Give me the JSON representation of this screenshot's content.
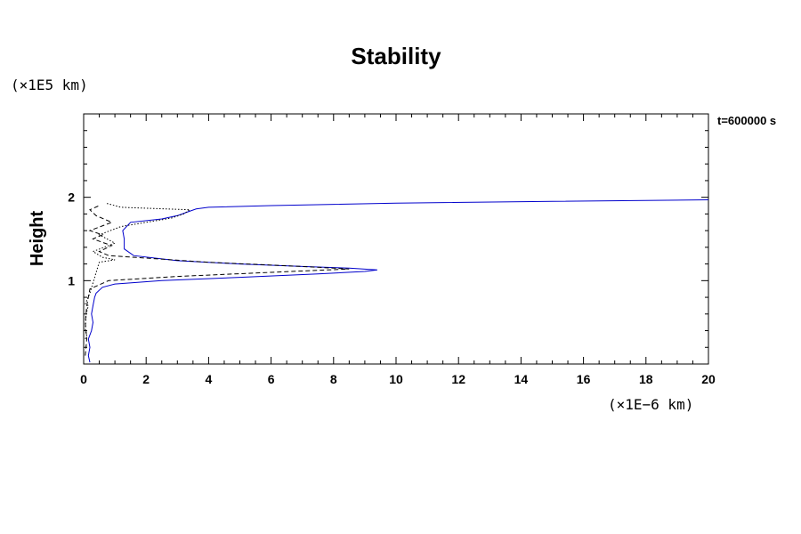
{
  "chart_data": {
    "type": "line",
    "title": "Stability",
    "ylabel": "Height",
    "xlabel": "",
    "y_unit": "(×1E5 km)",
    "x_unit": "(×1E−6 km)",
    "time_label": "t=600000 s",
    "xlim": [
      0,
      20
    ],
    "ylim": [
      0,
      3
    ],
    "x_ticks": [
      "0",
      "2",
      "4",
      "6",
      "8",
      "10",
      "12",
      "14",
      "16",
      "18",
      "20"
    ],
    "y_ticks": [
      "1",
      "2"
    ],
    "series": [
      {
        "color": "#0000cc",
        "dash": "solid",
        "points": [
          [
            0.2,
            0.02
          ],
          [
            0.15,
            0.1
          ],
          [
            0.2,
            0.2
          ],
          [
            0.15,
            0.3
          ],
          [
            0.25,
            0.4
          ],
          [
            0.3,
            0.5
          ],
          [
            0.25,
            0.6
          ],
          [
            0.3,
            0.7
          ],
          [
            0.35,
            0.8
          ],
          [
            0.4,
            0.85
          ],
          [
            0.6,
            0.92
          ],
          [
            1.0,
            0.96
          ],
          [
            2.5,
            1.0
          ],
          [
            5.0,
            1.04
          ],
          [
            7.5,
            1.08
          ],
          [
            9.0,
            1.11
          ],
          [
            9.4,
            1.13
          ],
          [
            8.5,
            1.15
          ],
          [
            7.0,
            1.17
          ],
          [
            5.0,
            1.2
          ],
          [
            3.0,
            1.24
          ],
          [
            1.6,
            1.3
          ],
          [
            1.3,
            1.38
          ],
          [
            1.3,
            1.5
          ],
          [
            1.25,
            1.6
          ],
          [
            1.5,
            1.7
          ],
          [
            2.5,
            1.74
          ],
          [
            3.0,
            1.78
          ],
          [
            3.3,
            1.82
          ],
          [
            3.6,
            1.86
          ],
          [
            4.0,
            1.88
          ],
          [
            6.0,
            1.9
          ],
          [
            10.0,
            1.93
          ],
          [
            15.0,
            1.95
          ],
          [
            20.0,
            1.97
          ]
        ]
      },
      {
        "color": "#000000",
        "dash": "dashed",
        "points": [
          [
            0.05,
            0.1
          ],
          [
            0.1,
            0.3
          ],
          [
            0.05,
            0.5
          ],
          [
            0.1,
            0.7
          ],
          [
            0.2,
            0.9
          ],
          [
            0.8,
            1.0
          ],
          [
            3.0,
            1.05
          ],
          [
            6.0,
            1.1
          ],
          [
            8.5,
            1.14
          ],
          [
            7.0,
            1.17
          ],
          [
            4.0,
            1.22
          ],
          [
            2.0,
            1.27
          ],
          [
            0.8,
            1.3
          ],
          [
            0.5,
            1.35
          ],
          [
            0.9,
            1.42
          ],
          [
            0.3,
            1.5
          ],
          [
            0.6,
            1.55
          ],
          [
            0.2,
            1.6
          ],
          [
            0.9,
            1.7
          ],
          [
            0.4,
            1.78
          ],
          [
            0.2,
            1.85
          ],
          [
            0.5,
            1.9
          ]
        ]
      },
      {
        "color": "#000000",
        "dash": "dotted",
        "points": [
          [
            0.05,
            0.3
          ],
          [
            0.1,
            0.35
          ],
          [
            0.05,
            0.4
          ],
          [
            0.08,
            0.6
          ],
          [
            0.15,
            0.7
          ],
          [
            0.05,
            0.72
          ],
          [
            0.2,
            0.85
          ],
          [
            0.5,
            1.22
          ],
          [
            1.0,
            1.25
          ],
          [
            0.6,
            1.28
          ],
          [
            0.3,
            1.35
          ],
          [
            1.0,
            1.45
          ],
          [
            0.5,
            1.55
          ],
          [
            1.2,
            1.65
          ],
          [
            2.0,
            1.7
          ],
          [
            2.8,
            1.75
          ],
          [
            3.2,
            1.8
          ],
          [
            3.4,
            1.85
          ],
          [
            1.2,
            1.88
          ],
          [
            0.7,
            1.93
          ]
        ]
      }
    ]
  }
}
